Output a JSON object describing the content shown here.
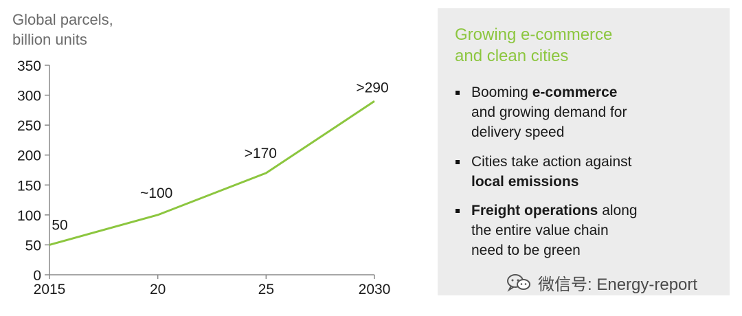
{
  "chart_data": {
    "type": "line",
    "ylabel_lines": [
      "Global parcels,",
      "billion units"
    ],
    "x": [
      2015,
      2020,
      2025,
      2030
    ],
    "x_tick_labels": [
      "2015",
      "20",
      "25",
      "2030"
    ],
    "y_ticks": [
      0,
      50,
      100,
      150,
      200,
      250,
      300,
      350
    ],
    "ylim": [
      0,
      350
    ],
    "series": [
      {
        "values": [
          50,
          100,
          170,
          290
        ]
      }
    ],
    "data_labels": [
      "50",
      "~100",
      ">170",
      ">290"
    ],
    "line_color": "#8cc63f",
    "grid": false
  },
  "panel": {
    "title_lines": [
      "Growing e-commerce",
      "and clean cities"
    ],
    "title_color": "#8cc63f",
    "background": "#ececec",
    "bullets": [
      {
        "lines": [
          [
            {
              "text": "Booming ",
              "bold": false
            },
            {
              "text": "e-commerce",
              "bold": true
            }
          ],
          [
            {
              "text": "and growing demand for",
              "bold": false
            }
          ],
          [
            {
              "text": "delivery speed",
              "bold": false
            }
          ]
        ]
      },
      {
        "lines": [
          [
            {
              "text": "Cities take action against",
              "bold": false
            }
          ],
          [
            {
              "text": "local emissions",
              "bold": true
            }
          ]
        ]
      },
      {
        "lines": [
          [
            {
              "text": "Freight operations",
              "bold": true
            },
            {
              "text": " along",
              "bold": false
            }
          ],
          [
            {
              "text": "the entire value chain",
              "bold": false
            }
          ],
          [
            {
              "text": "need to be green",
              "bold": false
            }
          ]
        ]
      }
    ]
  },
  "watermark": {
    "icon": "wechat-icon",
    "text": "微信号: Energy-report"
  }
}
